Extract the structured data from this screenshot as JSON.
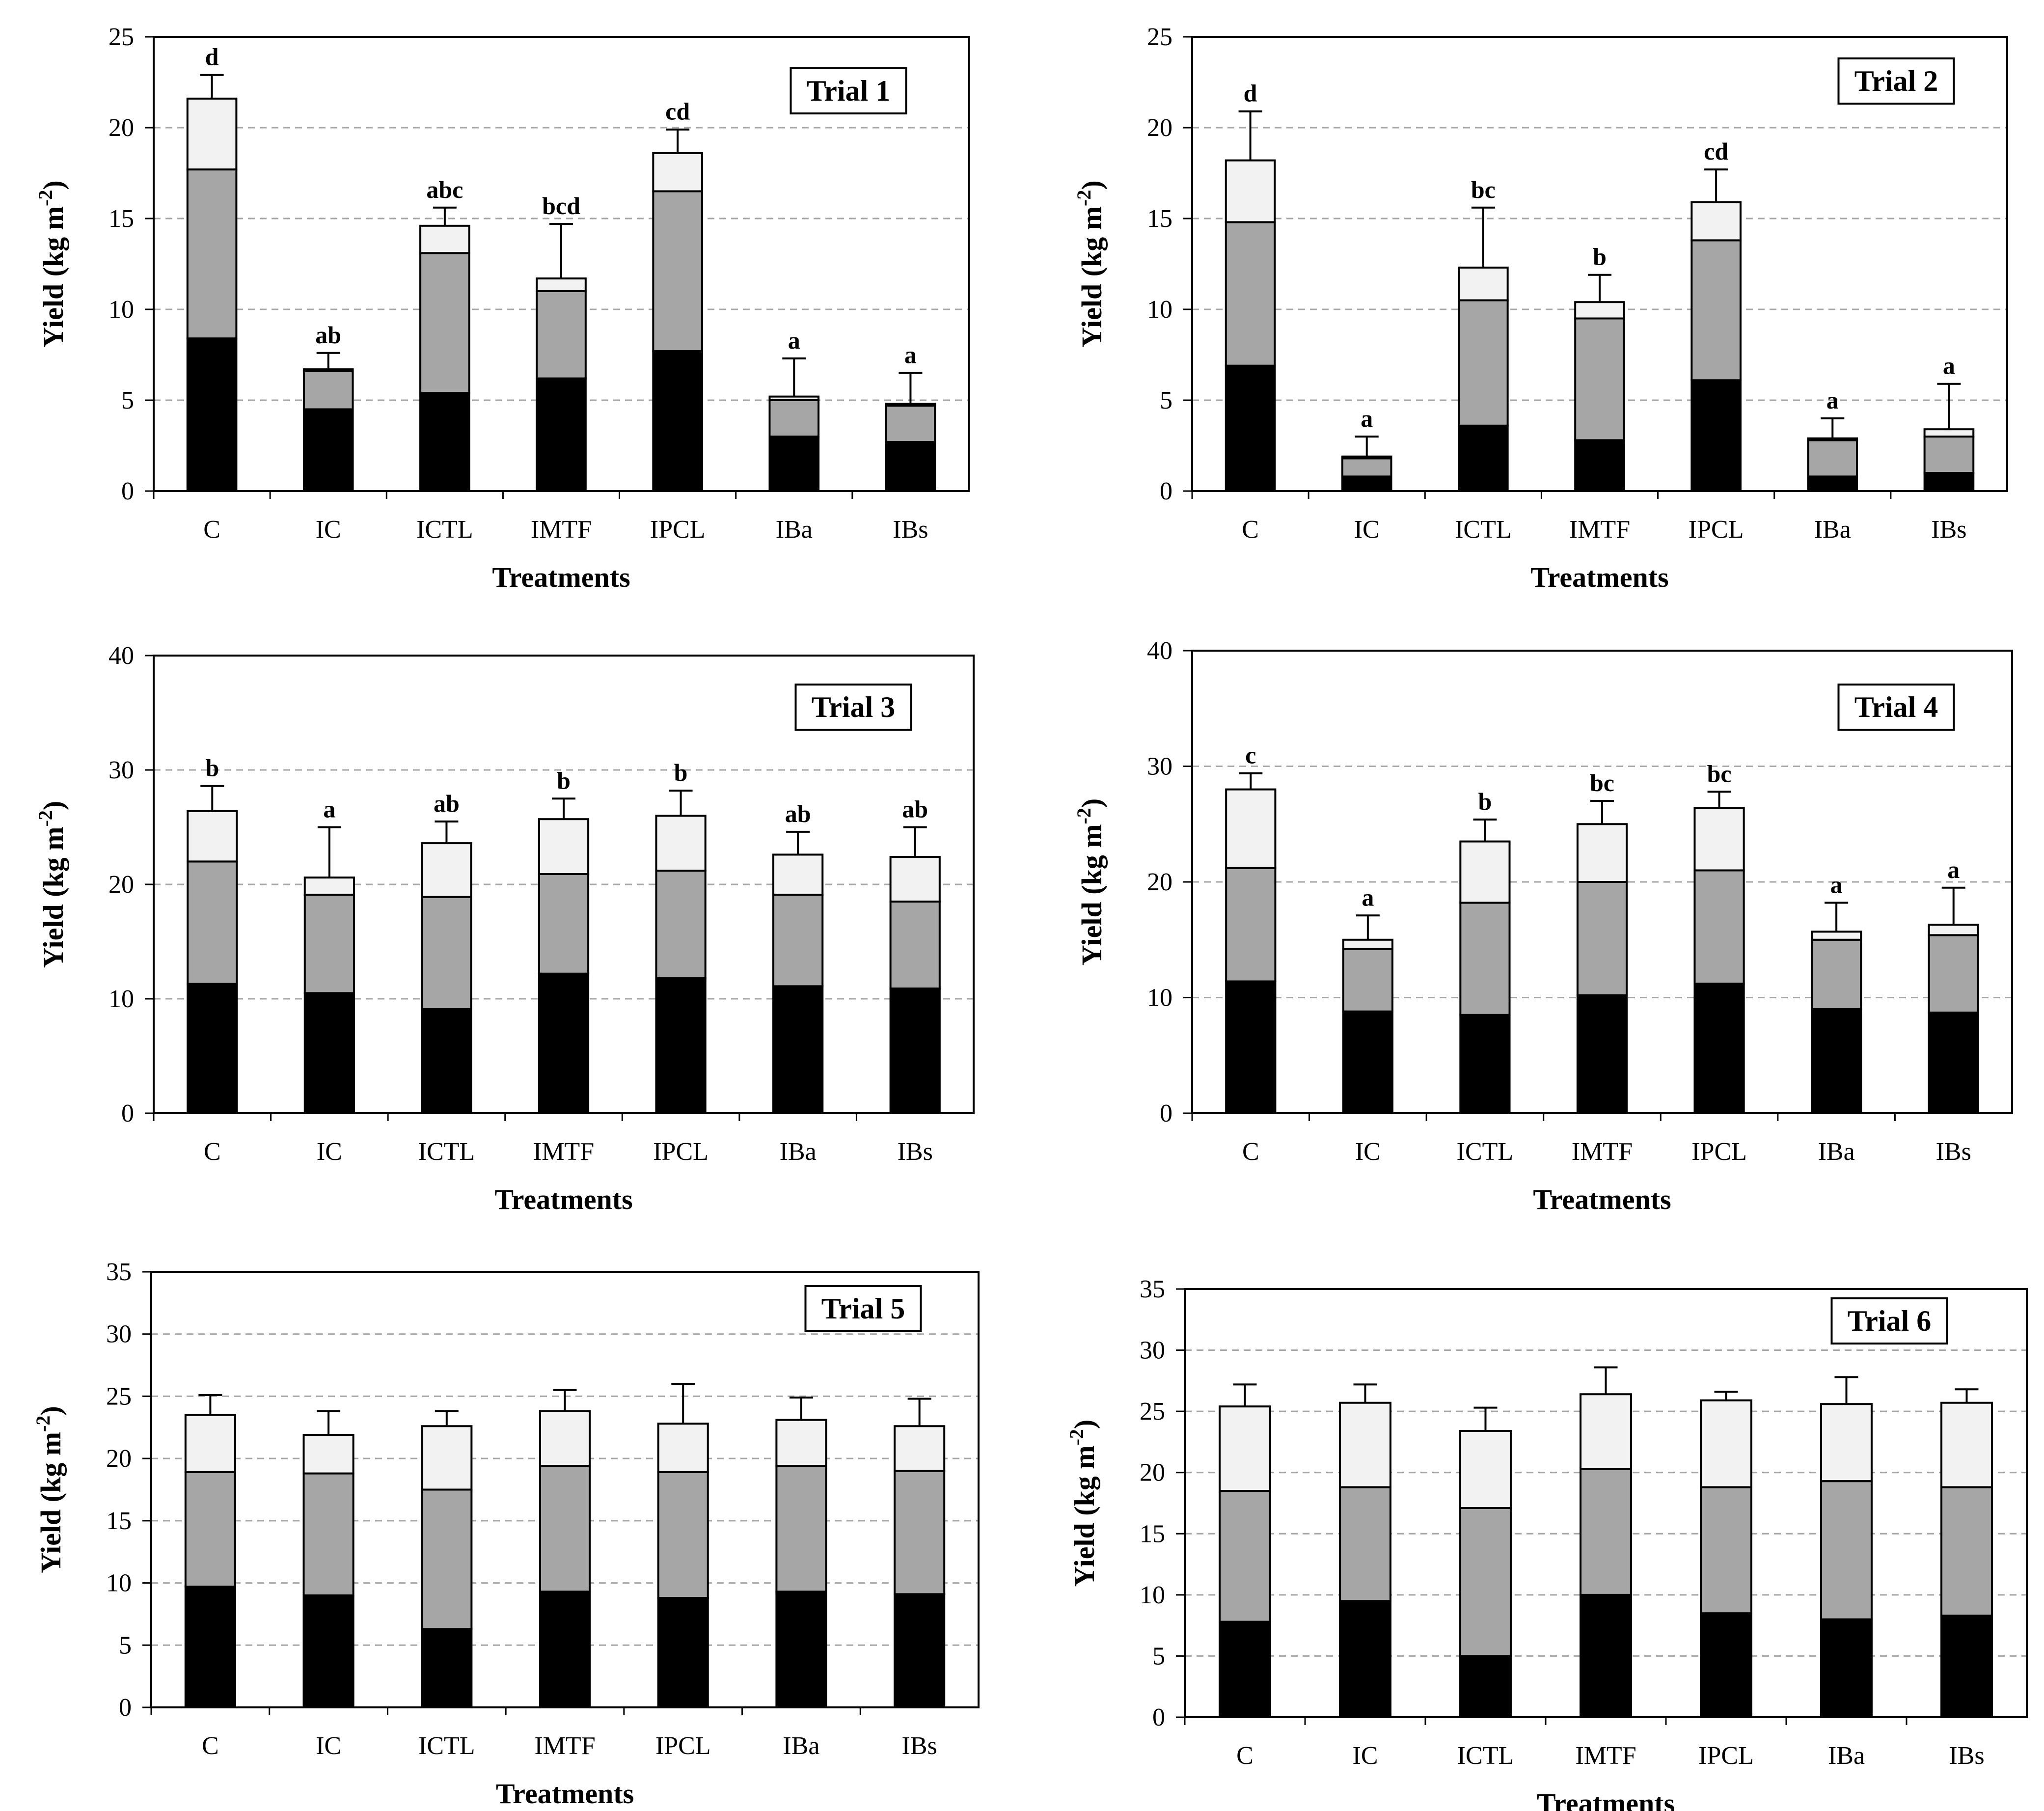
{
  "colors": {
    "bottom_segment": "#000000",
    "middle_segment": "#a6a6a6",
    "top_segment": "#f2f2f2",
    "outline": "#000000",
    "grid": "#a6a6a6"
  },
  "chart_data": [
    {
      "type": "bar",
      "stacked": true,
      "trial_label": "Trial 1",
      "xlabel": "Treatments",
      "ylabel": "Yield (kg m-2)",
      "ylim": [
        0,
        25
      ],
      "yticks": [
        0,
        5,
        10,
        15,
        20,
        25
      ],
      "grid": true,
      "categories": [
        "C",
        "IC",
        "ICTL",
        "IMTF",
        "IPCL",
        "IBa",
        "IBs"
      ],
      "series": [
        {
          "values": [
            8.4,
            4.5,
            5.4,
            6.2,
            7.7,
            3.0,
            2.7
          ]
        },
        {
          "values": [
            9.3,
            2.1,
            7.7,
            4.8,
            8.8,
            2.0,
            2.0
          ]
        },
        {
          "values": [
            3.9,
            0.1,
            1.5,
            0.7,
            2.1,
            0.2,
            0.1
          ]
        }
      ],
      "error": [
        1.3,
        0.9,
        1.0,
        3.0,
        1.3,
        2.1,
        1.7
      ],
      "significance": [
        "d",
        "ab",
        "abc",
        "bcd",
        "cd",
        "a",
        "a"
      ]
    },
    {
      "type": "bar",
      "stacked": true,
      "trial_label": "Trial 2",
      "xlabel": "Treatments",
      "ylabel": "Yield (kg m-2)",
      "ylim": [
        0,
        25
      ],
      "yticks": [
        0,
        5,
        10,
        15,
        20,
        25
      ],
      "grid": true,
      "categories": [
        "C",
        "IC",
        "ICTL",
        "IMTF",
        "IPCL",
        "IBa",
        "IBs"
      ],
      "series": [
        {
          "values": [
            6.9,
            0.8,
            3.6,
            2.8,
            6.1,
            0.8,
            1.0
          ]
        },
        {
          "values": [
            7.9,
            1.0,
            6.9,
            6.7,
            7.7,
            2.0,
            2.0
          ]
        },
        {
          "values": [
            3.4,
            0.1,
            1.8,
            0.9,
            2.1,
            0.1,
            0.4
          ]
        }
      ],
      "error": [
        2.7,
        1.1,
        3.3,
        1.5,
        1.8,
        1.1,
        2.5
      ],
      "significance": [
        "d",
        "a",
        "bc",
        "b",
        "cd",
        "a",
        "a"
      ]
    },
    {
      "type": "bar",
      "stacked": true,
      "trial_label": "Trial 3",
      "xlabel": "Treatments",
      "ylabel": "Yield (kg m-2)",
      "ylim": [
        0,
        40
      ],
      "yticks": [
        0,
        10,
        20,
        30,
        40
      ],
      "grid": true,
      "categories": [
        "C",
        "IC",
        "ICTL",
        "IMTF",
        "IPCL",
        "IBa",
        "IBs"
      ],
      "series": [
        {
          "values": [
            11.3,
            10.5,
            9.1,
            12.2,
            11.8,
            11.1,
            10.9
          ]
        },
        {
          "values": [
            10.7,
            8.6,
            9.8,
            8.7,
            9.4,
            8.0,
            7.6
          ]
        },
        {
          "values": [
            4.4,
            1.5,
            4.7,
            4.8,
            4.8,
            3.5,
            3.9
          ]
        }
      ],
      "error": [
        2.2,
        4.4,
        1.9,
        1.8,
        2.2,
        2.0,
        2.6
      ],
      "significance": [
        "b",
        "a",
        "ab",
        "b",
        "b",
        "ab",
        "ab"
      ]
    },
    {
      "type": "bar",
      "stacked": true,
      "trial_label": "Trial 4",
      "xlabel": "Treatments",
      "ylabel": "Yield (kg m-2)",
      "ylim": [
        0,
        40
      ],
      "yticks": [
        0,
        10,
        20,
        30,
        40
      ],
      "grid": true,
      "categories": [
        "C",
        "IC",
        "ICTL",
        "IMTF",
        "IPCL",
        "IBa",
        "IBs"
      ],
      "series": [
        {
          "values": [
            11.4,
            8.8,
            8.5,
            10.2,
            11.2,
            9.0,
            8.7
          ]
        },
        {
          "values": [
            9.8,
            5.4,
            9.7,
            9.8,
            9.8,
            6.0,
            6.7
          ]
        },
        {
          "values": [
            6.8,
            0.8,
            5.3,
            5.0,
            5.4,
            0.7,
            0.9
          ]
        }
      ],
      "error": [
        1.4,
        2.1,
        1.9,
        2.0,
        1.4,
        2.5,
        3.2
      ],
      "significance": [
        "c",
        "a",
        "b",
        "bc",
        "bc",
        "a",
        "a"
      ]
    },
    {
      "type": "bar",
      "stacked": true,
      "trial_label": "Trial 5",
      "xlabel": "Treatments",
      "ylabel": "Yield (kg m-2)",
      "ylim": [
        0,
        35
      ],
      "yticks": [
        0,
        5,
        10,
        15,
        20,
        25,
        30,
        35
      ],
      "grid": true,
      "categories": [
        "C",
        "IC",
        "ICTL",
        "IMTF",
        "IPCL",
        "IBa",
        "IBs"
      ],
      "series": [
        {
          "values": [
            9.7,
            9.0,
            6.3,
            9.3,
            8.8,
            9.3,
            9.1
          ]
        },
        {
          "values": [
            9.2,
            9.8,
            11.2,
            10.1,
            10.1,
            10.1,
            9.9
          ]
        },
        {
          "values": [
            4.6,
            3.1,
            5.1,
            4.4,
            3.9,
            3.7,
            3.6
          ]
        }
      ],
      "error": [
        1.6,
        1.9,
        1.2,
        1.7,
        3.2,
        1.8,
        2.2
      ],
      "significance": [
        "",
        "",
        "",
        "",
        "",
        "",
        ""
      ]
    },
    {
      "type": "bar",
      "stacked": true,
      "trial_label": "Trial 6",
      "xlabel": "Treatments",
      "ylabel": "Yield (kg m-2)",
      "ylim": [
        0,
        35
      ],
      "yticks": [
        0,
        5,
        10,
        15,
        20,
        25,
        30,
        35
      ],
      "grid": true,
      "categories": [
        "C",
        "IC",
        "ICTL",
        "IMTF",
        "IPCL",
        "IBa",
        "IBs"
      ],
      "series": [
        {
          "values": [
            7.8,
            9.5,
            5.0,
            10.0,
            8.5,
            8.0,
            8.3
          ]
        },
        {
          "values": [
            10.7,
            9.3,
            12.1,
            10.3,
            10.3,
            11.3,
            10.5
          ]
        },
        {
          "values": [
            6.9,
            6.9,
            6.3,
            6.1,
            7.1,
            6.3,
            6.9
          ]
        }
      ],
      "error": [
        1.8,
        1.5,
        1.9,
        2.2,
        0.7,
        2.2,
        1.1
      ],
      "significance": [
        "",
        "",
        "",
        "",
        "",
        "",
        ""
      ]
    }
  ]
}
